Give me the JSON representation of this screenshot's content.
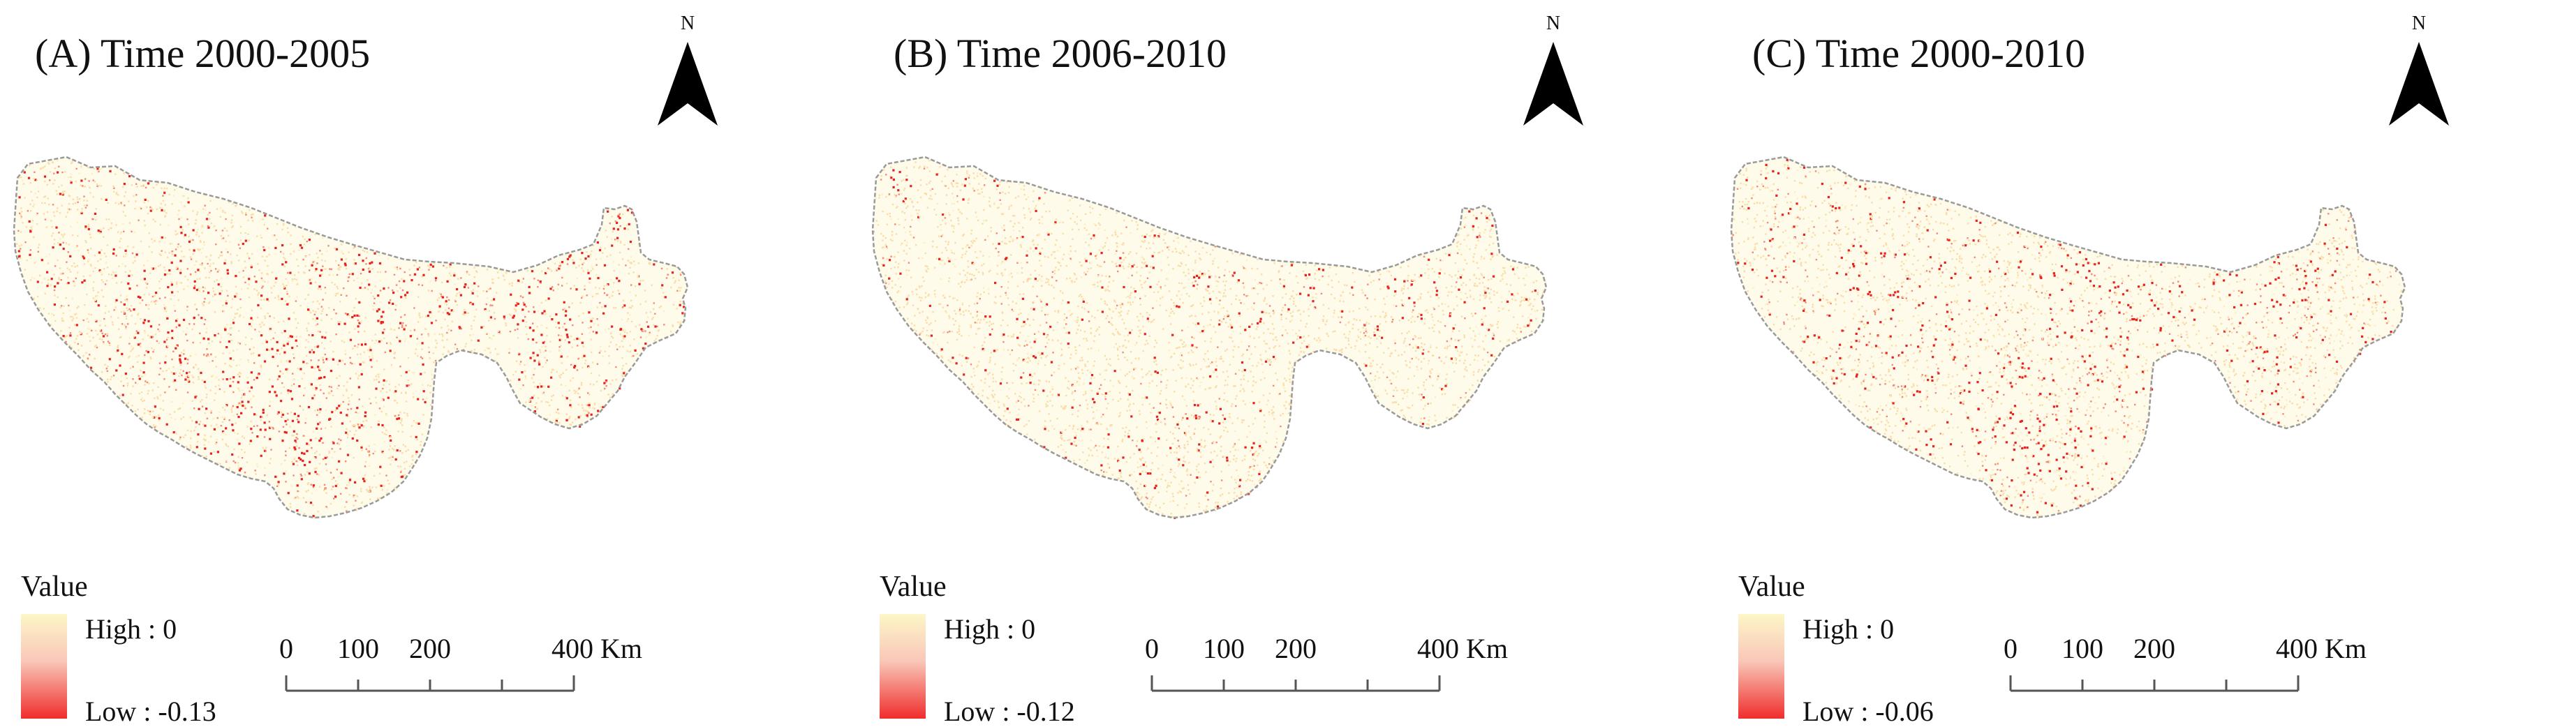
{
  "panels": [
    {
      "title": "(A) Time 2000-2005",
      "north_label": "N",
      "legend": {
        "title": "Value",
        "high": "High : 0",
        "low": "Low : -0.13"
      },
      "scalebar": {
        "ticks": [
          "0",
          "100",
          "200",
          "400"
        ],
        "unit": "Km"
      },
      "red_intensity": 1.0
    },
    {
      "title": "(B) Time 2006-2010",
      "north_label": "N",
      "legend": {
        "title": "Value",
        "high": "High : 0",
        "low": "Low : -0.12"
      },
      "scalebar": {
        "ticks": [
          "0",
          "100",
          "200",
          "400"
        ],
        "unit": "Km"
      },
      "red_intensity": 0.45
    },
    {
      "title": "(C) Time 2000-2010",
      "north_label": "N",
      "legend": {
        "title": "Value",
        "high": "High : 0",
        "low": "Low : -0.06"
      },
      "scalebar": {
        "ticks": [
          "0",
          "100",
          "200",
          "400"
        ],
        "unit": "Km"
      },
      "red_intensity": 0.8
    }
  ],
  "colors": {
    "high": "#fdf6c8",
    "low": "#ef2d2d",
    "boundary": "#9a9a9a"
  }
}
